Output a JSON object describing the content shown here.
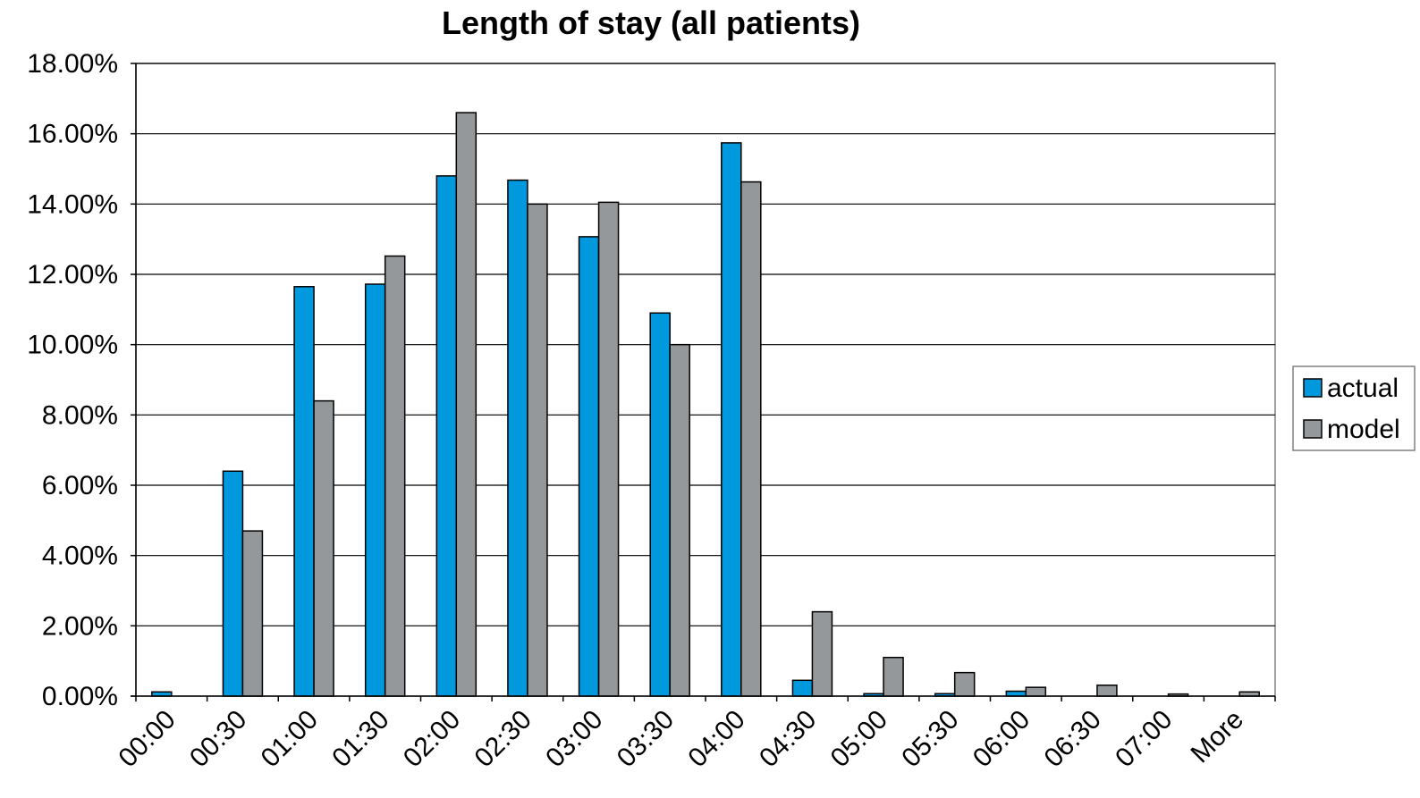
{
  "chart_data": {
    "type": "bar",
    "title": "Length of stay (all patients)",
    "xlabel": "",
    "ylabel": "",
    "categories": [
      "00:00",
      "00:30",
      "01:00",
      "01:30",
      "02:00",
      "02:30",
      "03:00",
      "03:30",
      "04:00",
      "04:30",
      "05:00",
      "05:30",
      "06:00",
      "06:30",
      "07:00",
      "More"
    ],
    "series": [
      {
        "name": "actual",
        "color": "#0099DD",
        "values": [
          0.12,
          6.4,
          11.65,
          11.72,
          14.8,
          14.68,
          13.07,
          10.9,
          15.74,
          0.45,
          0.07,
          0.07,
          0.14,
          0.0,
          0.0,
          0.0
        ]
      },
      {
        "name": "model",
        "color": "#95989A",
        "values": [
          0.0,
          4.7,
          8.4,
          12.52,
          16.6,
          14.0,
          14.05,
          10.0,
          14.63,
          2.4,
          1.1,
          0.67,
          0.25,
          0.31,
          0.06,
          0.12
        ]
      }
    ],
    "ylim": [
      0,
      18
    ],
    "yticks": [
      "0.00%",
      "2.00%",
      "4.00%",
      "6.00%",
      "8.00%",
      "10.00%",
      "12.00%",
      "14.00%",
      "16.00%",
      "18.00%"
    ],
    "grid": true,
    "legend_position": "right"
  }
}
